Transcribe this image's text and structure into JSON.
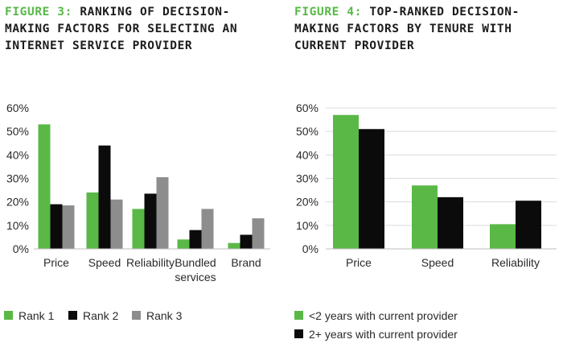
{
  "figure3": {
    "number": "FIGURE 3:",
    "title": "RANKING OF DECISION-MAKING FACTORS FOR SELECTING AN INTERNET SERVICE PROVIDER"
  },
  "figure4": {
    "number": "FIGURE 4:",
    "title": "TOP-RANKED DECISION-MAKING FACTORS BY TENURE WITH CURRENT PROVIDER"
  },
  "colors": {
    "green": "#5ab846",
    "black": "#0b0b0b",
    "gray": "#8d8d8d",
    "title_accent": "#57b947"
  },
  "chart_data": [
    {
      "type": "bar",
      "title": "FIGURE 3: RANKING OF DECISION-MAKING FACTORS FOR SELECTING AN INTERNET SERVICE PROVIDER",
      "categories": [
        "Price",
        "Speed",
        "Reliability",
        "Bundled services",
        "Brand"
      ],
      "category_lines": [
        [
          "Price"
        ],
        [
          "Speed"
        ],
        [
          "Reliability"
        ],
        [
          "Bundled",
          "services"
        ],
        [
          "Brand"
        ]
      ],
      "series": [
        {
          "name": "Rank 1",
          "color": "#5ab846",
          "values": [
            53,
            24,
            17,
            4,
            2.5
          ]
        },
        {
          "name": "Rank 2",
          "color": "#0b0b0b",
          "values": [
            19,
            44,
            23.5,
            8,
            6
          ]
        },
        {
          "name": "Rank 3",
          "color": "#8d8d8d",
          "values": [
            18.5,
            21,
            30.5,
            17,
            13
          ]
        }
      ],
      "ylim": [
        0,
        60
      ],
      "yticks": [
        "0%",
        "10%",
        "20%",
        "30%",
        "40%",
        "50%",
        "60%"
      ],
      "xlabel": "",
      "ylabel": "",
      "grid": false,
      "legend": "bottom"
    },
    {
      "type": "bar",
      "title": "FIGURE 4: TOP-RANKED DECISION-MAKING FACTORS BY TENURE WITH CURRENT PROVIDER",
      "categories": [
        "Price",
        "Speed",
        "Reliability"
      ],
      "category_lines": [
        [
          "Price"
        ],
        [
          "Speed"
        ],
        [
          "Reliability"
        ]
      ],
      "series": [
        {
          "name": "<2 years with current provider",
          "color": "#5ab846",
          "values": [
            57,
            27,
            10.5
          ]
        },
        {
          "name": "2+ years with current provider",
          "color": "#0b0b0b",
          "values": [
            51,
            22,
            20.5
          ]
        }
      ],
      "ylim": [
        0,
        60
      ],
      "yticks": [
        "0%",
        "10%",
        "20%",
        "30%",
        "40%",
        "50%",
        "60%"
      ],
      "xlabel": "",
      "ylabel": "",
      "grid": true,
      "legend": "bottom"
    }
  ]
}
